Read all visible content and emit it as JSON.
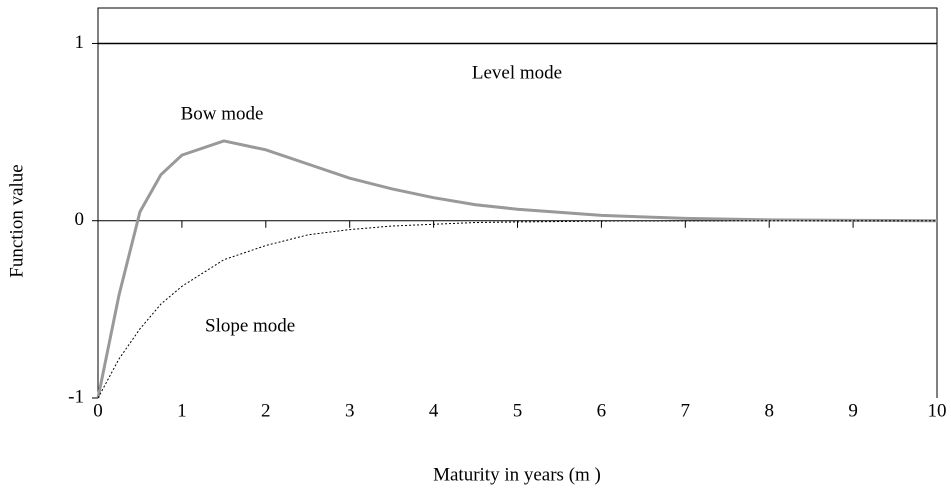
{
  "chart_data": {
    "type": "line",
    "x_label": "Maturity in years (m )",
    "y_label": "Function value",
    "x": [
      0,
      0.25,
      0.5,
      0.75,
      1,
      1.5,
      2,
      2.5,
      3,
      3.5,
      4,
      4.5,
      5,
      6,
      7,
      8,
      9,
      10
    ],
    "series": [
      {
        "name": "Level mode",
        "color": "#000000",
        "values": [
          1,
          1,
          1,
          1,
          1,
          1,
          1,
          1,
          1,
          1,
          1,
          1,
          1,
          1,
          1,
          1,
          1,
          1
        ]
      },
      {
        "name": "Bow mode",
        "color": "#999999",
        "values": [
          -1,
          -0.42,
          0.05,
          0.26,
          0.37,
          0.45,
          0.4,
          0.32,
          0.24,
          0.18,
          0.13,
          0.09,
          0.065,
          0.03,
          0.013,
          0.005,
          0.002,
          0
        ]
      },
      {
        "name": "Slope mode",
        "color": "#000000",
        "values": [
          -1,
          -0.78,
          -0.61,
          -0.47,
          -0.37,
          -0.22,
          -0.14,
          -0.08,
          -0.05,
          -0.03,
          -0.02,
          -0.01,
          -0.007,
          -0.002,
          -0.001,
          0,
          0,
          0
        ]
      }
    ],
    "xlim": [
      0,
      10
    ],
    "xticks": [
      0,
      1,
      2,
      3,
      4,
      5,
      6,
      7,
      8,
      9,
      10
    ],
    "ylim": [
      -1,
      1.2
    ],
    "yticks": [
      -1,
      0,
      1
    ]
  }
}
